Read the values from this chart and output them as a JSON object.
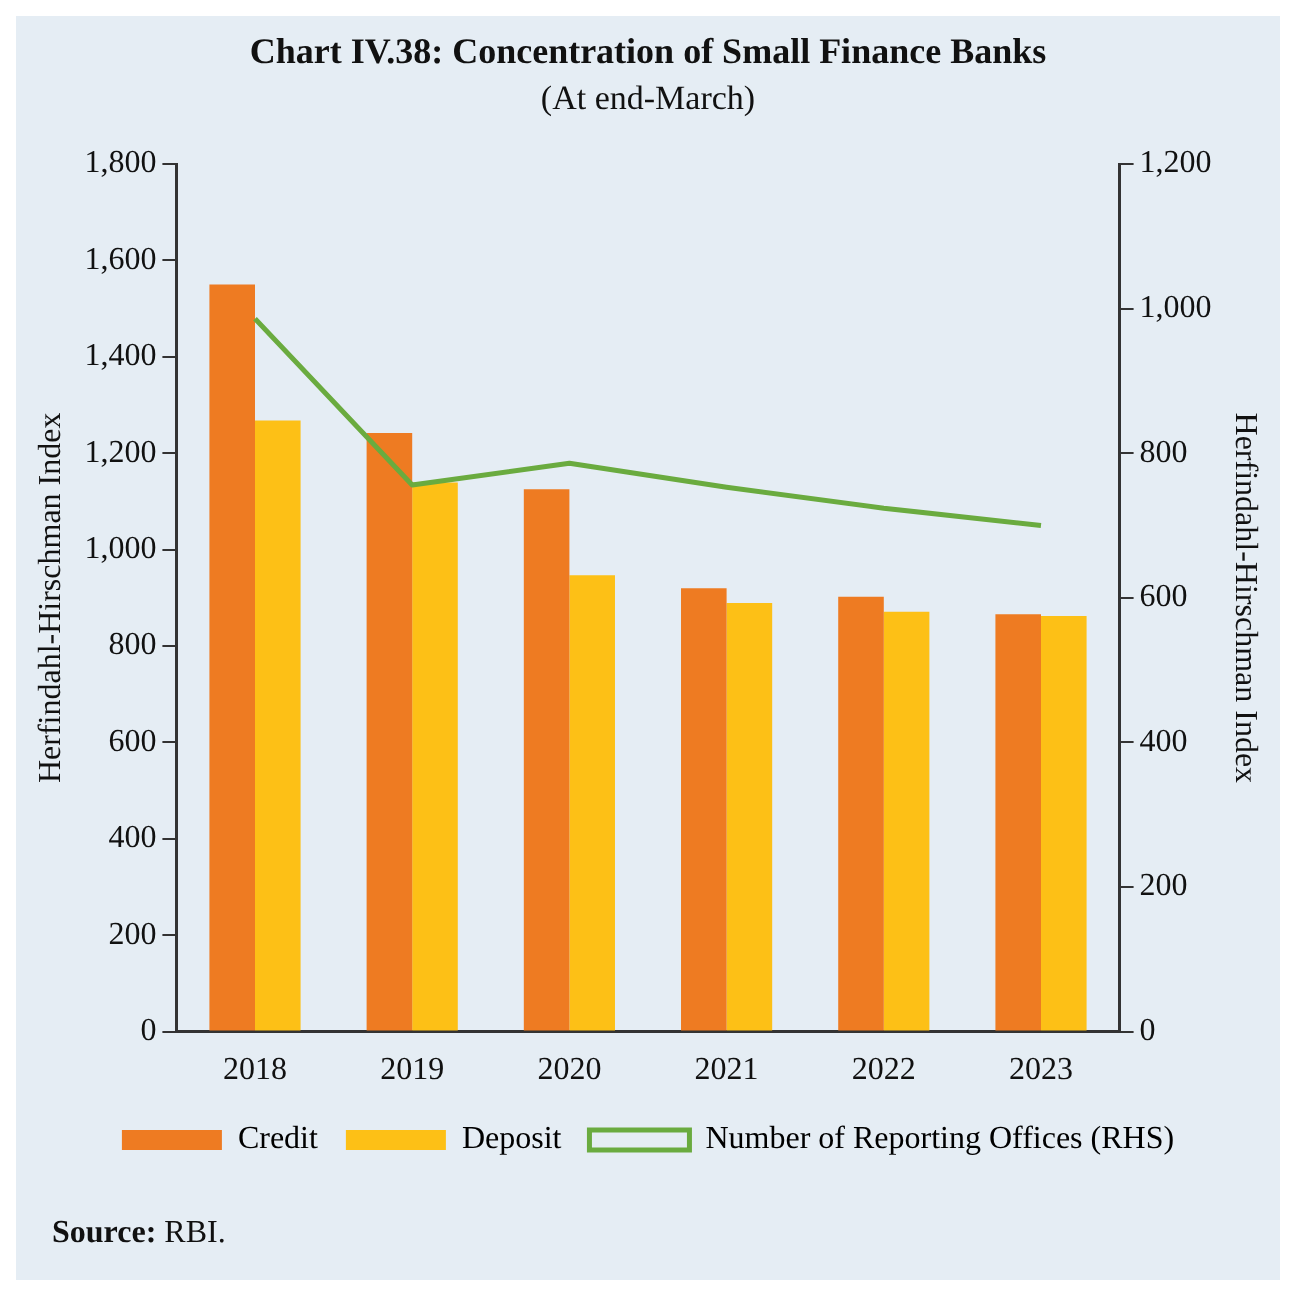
{
  "chart_data": {
    "type": "bar",
    "title": "Chart IV.38: Concentration of Small Finance Banks",
    "subtitle": "(At end-March)",
    "ylabel": "Herfindahl-Hirschman Index",
    "y2label": "Herfindahl-Hirschman Index",
    "categories": [
      "2018",
      "2019",
      "2020",
      "2021",
      "2022",
      "2023"
    ],
    "series": [
      {
        "name": "Credit",
        "color": "#ee7b22",
        "values": [
          1550,
          1242,
          1125,
          920,
          902,
          866
        ]
      },
      {
        "name": "Deposit",
        "color": "#fdc016",
        "values": [
          1268,
          1139,
          947,
          889,
          871,
          862
        ]
      },
      {
        "name": "Number of Reporting Offices (RHS)",
        "type": "line",
        "axis": "y2",
        "color": "#6aab3f",
        "values": [
          986,
          756,
          786,
          753,
          724,
          700
        ]
      }
    ],
    "ylim": [
      0,
      1800
    ],
    "yticks": [
      {
        "value": 0,
        "label": "0"
      },
      {
        "value": 200,
        "label": "200"
      },
      {
        "value": 400,
        "label": "400"
      },
      {
        "value": 600,
        "label": "600"
      },
      {
        "value": 800,
        "label": "800"
      },
      {
        "value": 1000,
        "label": "1,000"
      },
      {
        "value": 1200,
        "label": "1,200"
      },
      {
        "value": 1400,
        "label": "1,400"
      },
      {
        "value": 1600,
        "label": "1,600"
      },
      {
        "value": 1800,
        "label": "1,800"
      }
    ],
    "y2lim": [
      0,
      1200
    ],
    "y2ticks": [
      {
        "value": 0,
        "label": "0"
      },
      {
        "value": 200,
        "label": "200"
      },
      {
        "value": 400,
        "label": "400"
      },
      {
        "value": 600,
        "label": "600"
      },
      {
        "value": 800,
        "label": "800"
      },
      {
        "value": 1000,
        "label": "1,000"
      },
      {
        "value": 1200,
        "label": "1,200"
      }
    ],
    "grid": false,
    "legend": "bottom",
    "marker": "none",
    "line_style": "solid",
    "annotations": [
      "Source: RBI."
    ]
  }
}
